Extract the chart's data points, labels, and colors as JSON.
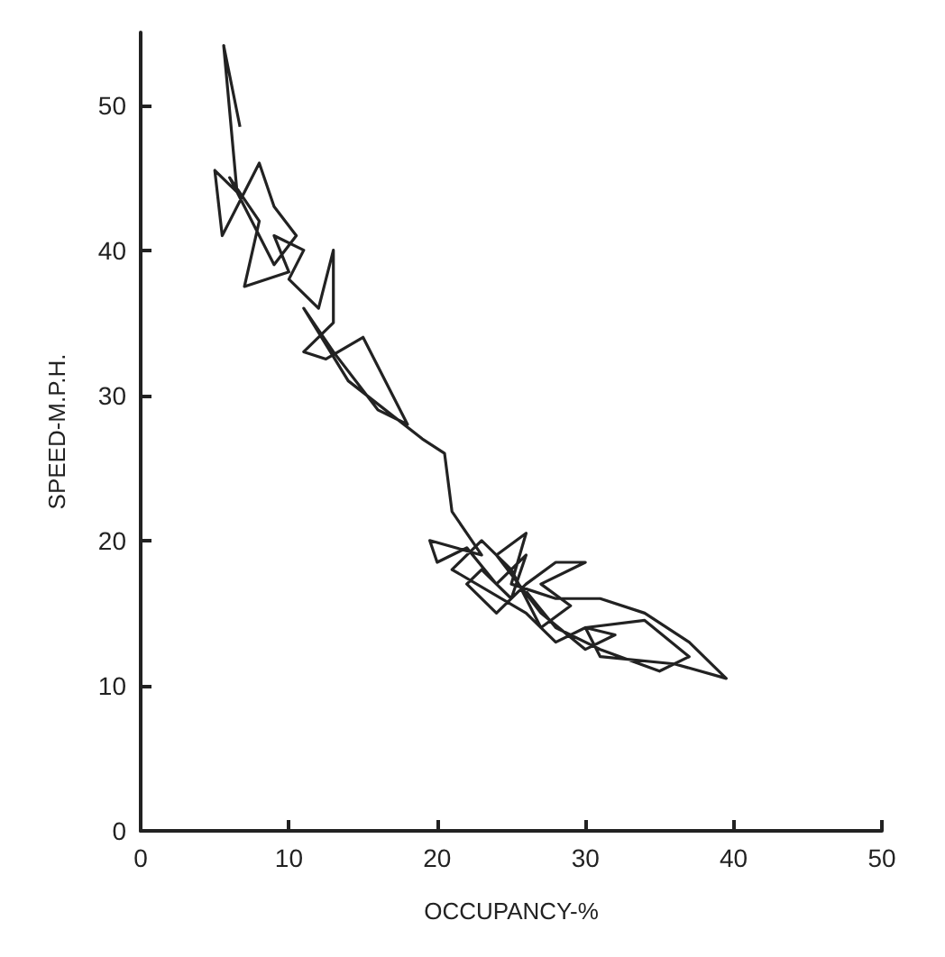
{
  "chart_data": {
    "type": "line",
    "xlabel": "OCCUPANCY-%",
    "ylabel": "SPEED-M.P.H.",
    "xlim": [
      0,
      50
    ],
    "ylim": [
      0,
      55
    ],
    "xticks": [
      0,
      10,
      20,
      30,
      40,
      50
    ],
    "yticks": [
      0,
      10,
      20,
      30,
      40,
      50
    ],
    "grid": false,
    "marker": "none",
    "line_style": "solid",
    "series": [
      {
        "color": "#222222",
        "x": [
          6.7,
          5.6,
          6.5,
          5,
          5.5,
          7,
          8,
          9,
          10.5,
          9,
          7,
          6,
          8,
          7,
          10,
          9,
          11,
          10,
          12,
          13,
          13,
          11,
          12.5,
          15,
          18,
          16,
          13,
          11,
          14,
          19,
          20.5,
          21,
          23,
          19.5,
          20,
          22,
          24,
          26,
          25,
          23,
          22,
          24,
          26,
          28,
          30,
          27,
          29,
          27,
          25,
          23,
          21,
          26,
          28,
          30,
          32,
          30,
          27,
          24,
          26,
          25,
          28,
          31,
          34,
          37,
          39.5,
          36,
          31,
          30,
          34,
          37,
          35,
          31,
          28,
          26
        ],
        "values": [
          48.5,
          54.1,
          44,
          45.5,
          41,
          44,
          46,
          43,
          41,
          39,
          43,
          45,
          42,
          37.5,
          38.5,
          41,
          40,
          38,
          36,
          40,
          35,
          33,
          32.5,
          34,
          28,
          29,
          33,
          36,
          31,
          27,
          26,
          22,
          19,
          20,
          18.5,
          19.5,
          17,
          19,
          16,
          18,
          17,
          15,
          17,
          18.5,
          18.5,
          17,
          15.5,
          14,
          18,
          20,
          18,
          15,
          13,
          14,
          13.5,
          12.5,
          15,
          19,
          20.5,
          17,
          16,
          16,
          15,
          13,
          10.5,
          11.5,
          12,
          14,
          14.5,
          12,
          11,
          12.5,
          14,
          16.5
        ]
      }
    ]
  }
}
